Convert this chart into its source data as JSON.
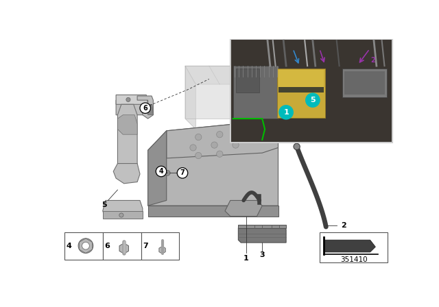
{
  "bg": "#ffffff",
  "diagram_number": "351410",
  "silver1": "#c8c8c8",
  "silver2": "#b0b0b0",
  "silver3": "#989898",
  "silver4": "#d8d8d8",
  "dark_grey": "#686868",
  "darker_grey": "#484848",
  "cable_color": "#404040",
  "tray_face": "#b4b4b4",
  "tray_side": "#909090",
  "bracket_color": "#888888",
  "clamp_color": "#c0c0c0",
  "grommet_color": "#787878",
  "battery_ghost": "#d4d4d4",
  "battery_ghost_edge": "#aaaaaa"
}
